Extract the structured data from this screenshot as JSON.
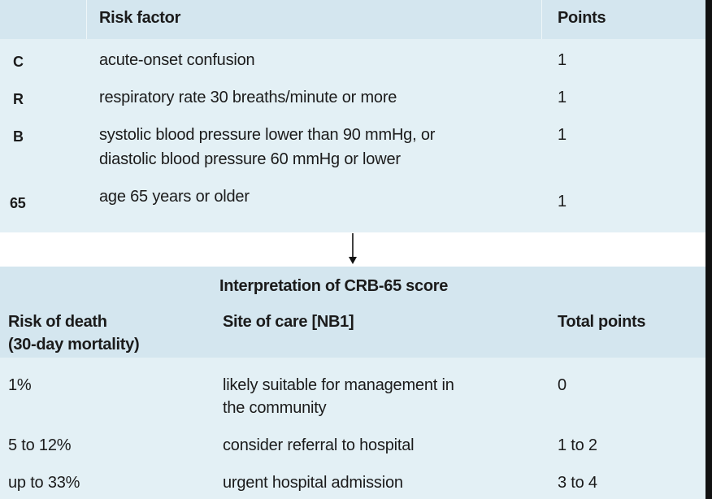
{
  "risk_table": {
    "header": {
      "factor": "Risk factor",
      "points": "Points"
    },
    "rows": [
      {
        "letter": "C",
        "description": [
          "acute-onset confusion"
        ],
        "points": "1"
      },
      {
        "letter": "R",
        "description": [
          "respiratory rate 30 breaths/minute or more"
        ],
        "points": "1"
      },
      {
        "letter": "B",
        "description": [
          "systolic blood pressure lower than 90 mmHg, or",
          "diastolic blood pressure 60 mmHg or lower"
        ],
        "points": "1"
      },
      {
        "letter": "65",
        "description": [
          "age 65 years or older"
        ],
        "points": "1"
      }
    ]
  },
  "interpretation": {
    "title": "Interpretation of CRB-65 score",
    "headers": {
      "risk_line1": "Risk of death",
      "risk_line2": "(30-day mortality)",
      "site": "Site of care [NB1]",
      "total": "Total points"
    },
    "rows": [
      {
        "risk": "1%",
        "site": [
          "likely suitable for management in",
          "the community"
        ],
        "total": "0"
      },
      {
        "risk": "5 to 12%",
        "site": [
          "consider referral to hospital"
        ],
        "total": "1 to 2"
      },
      {
        "risk": "up to 33%",
        "site": [
          "urgent hospital admission"
        ],
        "total": "3 to 4"
      }
    ]
  },
  "colors": {
    "header_bg": "#d4e6ef",
    "body_bg": "#e3f0f5",
    "text": "#1b1b1b"
  }
}
